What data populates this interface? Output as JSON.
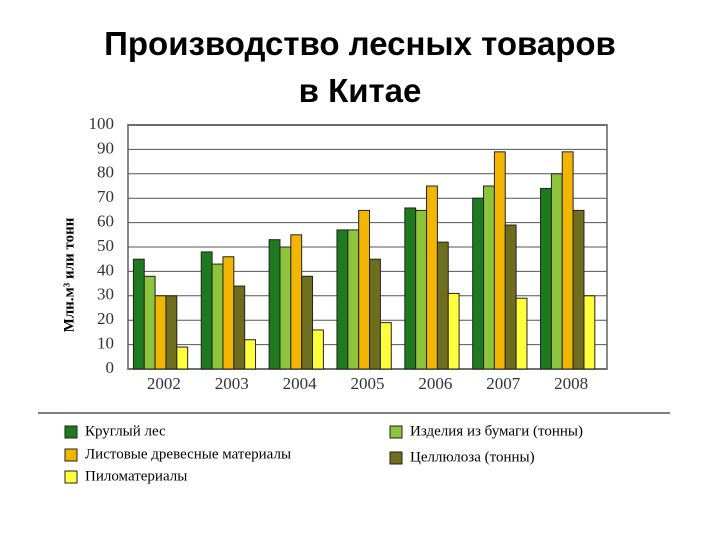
{
  "chart_data": {
    "type": "bar",
    "title": "Производство лесных товаров",
    "subtitle": "в Китае",
    "y_label": "Млн.м³ или тонн",
    "categories": [
      "2002",
      "2003",
      "2004",
      "2005",
      "2006",
      "2007",
      "2008"
    ],
    "series": [
      {
        "name": "Круглый лес",
        "color": "#1f7a1f",
        "values": [
          45,
          48,
          53,
          57,
          66,
          70,
          74
        ]
      },
      {
        "name": "Изделия из бумаги (тонны)",
        "color": "#8cc43c",
        "values": [
          38,
          43,
          50,
          57,
          65,
          75,
          80
        ]
      },
      {
        "name": "Листовые древесные материалы",
        "color": "#f2b600",
        "values": [
          30,
          46,
          55,
          65,
          75,
          89,
          89
        ]
      },
      {
        "name": "Целлюлоза (тонны)",
        "color": "#6e6e1e",
        "values": [
          30,
          34,
          38,
          45,
          52,
          59,
          65
        ]
      },
      {
        "name": "Пиломатериалы",
        "color": "#ffff3c",
        "values": [
          9,
          12,
          16,
          19,
          31,
          29,
          30
        ]
      }
    ],
    "ylim": [
      0,
      100
    ],
    "yticks": [
      0,
      10,
      20,
      30,
      40,
      50,
      60,
      70,
      80,
      90,
      100
    ],
    "grid": true
  }
}
